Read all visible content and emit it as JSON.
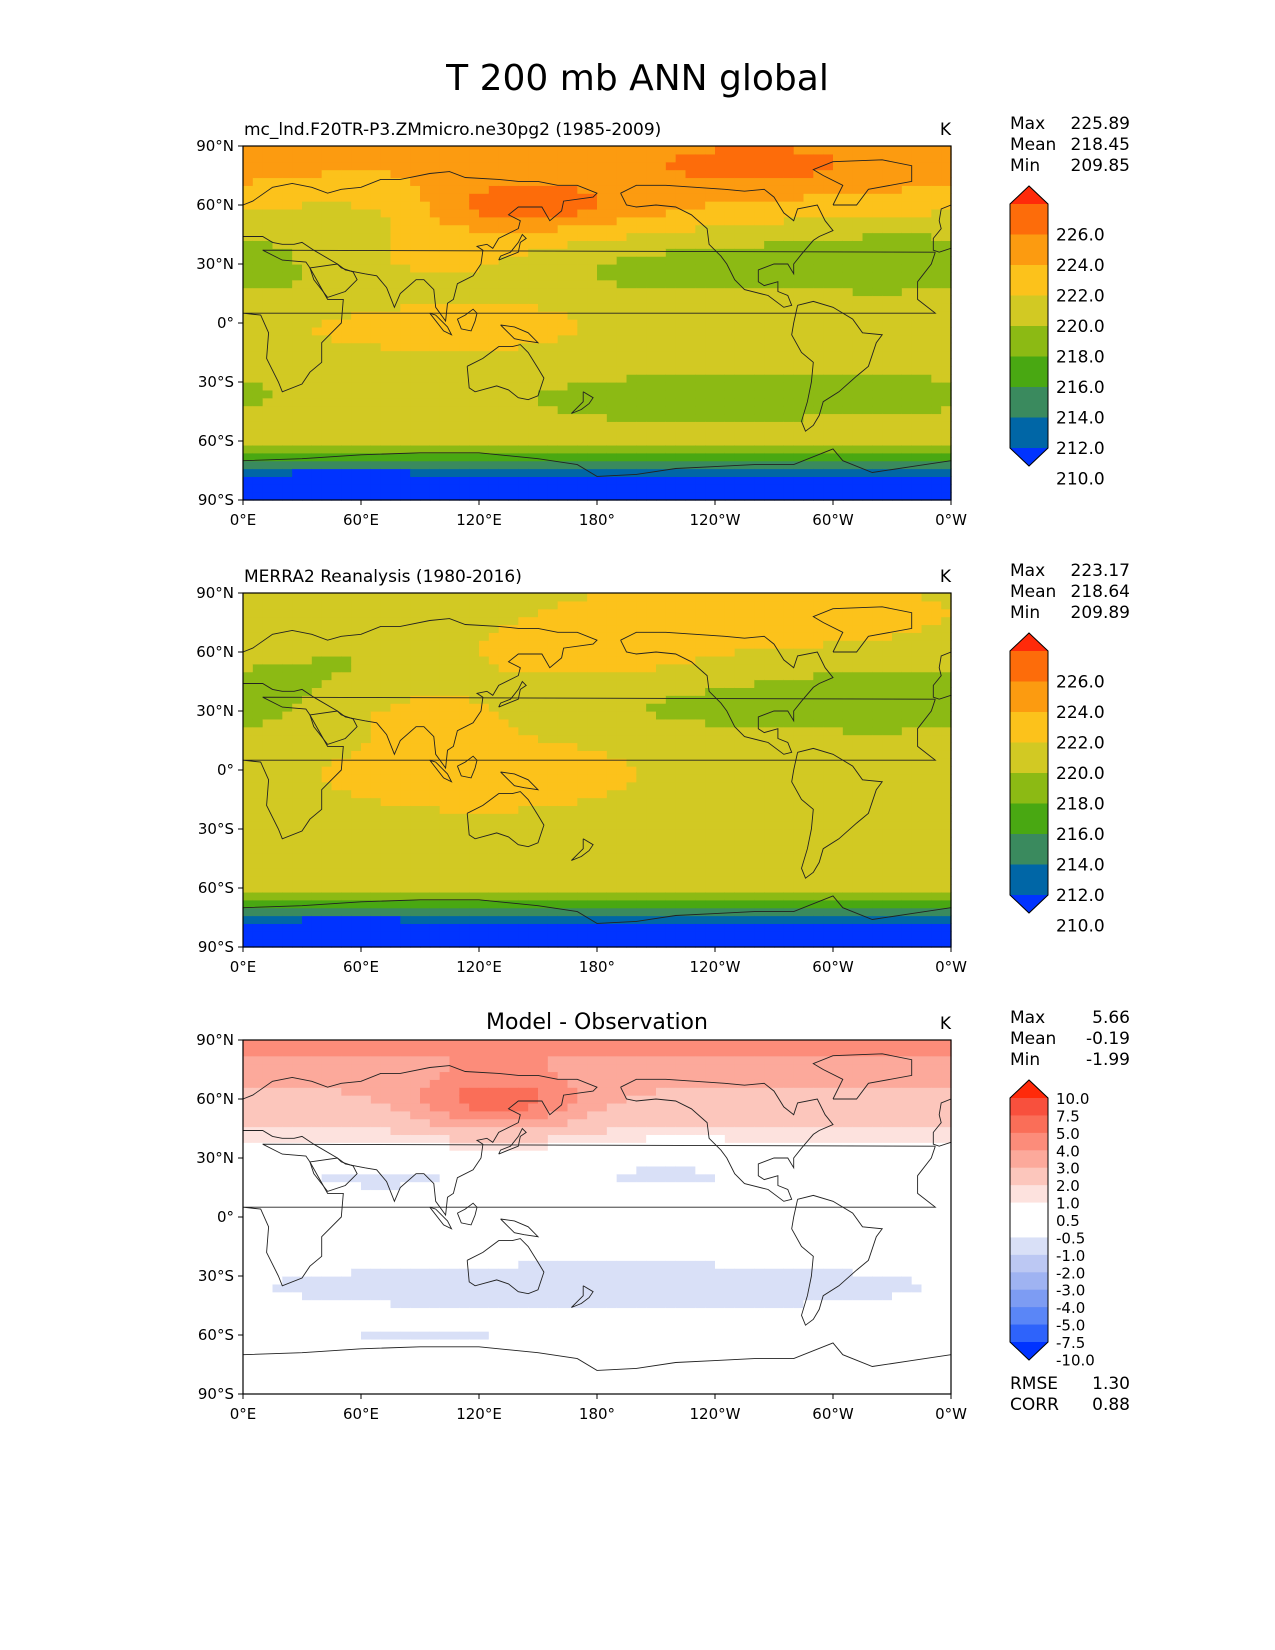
{
  "figure_title": "T 200 mb ANN global",
  "colors": {
    "abs_levels": [
      "#0033ff",
      "#0066a6",
      "#3a8a5e",
      "#49a812",
      "#8cba14",
      "#d2c923",
      "#fcc21b",
      "#fc9b10",
      "#fd6c0a",
      "#ff2a0a"
    ],
    "diff_levels": [
      "#0033ff",
      "#2e63fb",
      "#5a86f7",
      "#7d9cf3",
      "#9fb3f2",
      "#bcc8f3",
      "#d9e0f7",
      "#ffffff",
      "#ffffff",
      "#fde2de",
      "#fcc6bc",
      "#fca99b",
      "#fc8c7a",
      "#fa6e58",
      "#f8503d",
      "#ff2a0a"
    ],
    "coastline": "#222222"
  },
  "chart_data": [
    {
      "type": "contourf-map",
      "panel_title": "mc_lnd.F20TR-P3.ZMmicro.ne30pg2 (1985-2009)",
      "units": "K",
      "stats": [
        {
          "label": "Max",
          "value": "225.89"
        },
        {
          "label": "Mean",
          "value": "218.45"
        },
        {
          "label": "Min",
          "value": "209.85"
        }
      ],
      "colorbar_ticks": [
        "226.0",
        "224.0",
        "222.0",
        "220.0",
        "218.0",
        "216.0",
        "214.0",
        "212.0",
        "210.0"
      ],
      "lat_ticks": [
        "90°N",
        "60°N",
        "30°N",
        "0°",
        "30°S",
        "60°S",
        "90°S"
      ],
      "lon_ticks": [
        "0°E",
        "60°E",
        "120°E",
        "180°",
        "120°W",
        "60°W",
        "0°W"
      ],
      "xlim": [
        0,
        360
      ],
      "ylim": [
        -90,
        90
      ],
      "field": "model"
    },
    {
      "type": "contourf-map",
      "panel_title": "MERRA2 Reanalysis (1980-2016)",
      "units": "K",
      "stats": [
        {
          "label": "Max",
          "value": "223.17"
        },
        {
          "label": "Mean",
          "value": "218.64"
        },
        {
          "label": "Min",
          "value": "209.89"
        }
      ],
      "colorbar_ticks": [
        "226.0",
        "224.0",
        "222.0",
        "220.0",
        "218.0",
        "216.0",
        "214.0",
        "212.0",
        "210.0"
      ],
      "lat_ticks": [
        "90°N",
        "60°N",
        "30°N",
        "0°",
        "30°S",
        "60°S",
        "90°S"
      ],
      "lon_ticks": [
        "0°E",
        "60°E",
        "120°E",
        "180°",
        "120°W",
        "60°W",
        "0°W"
      ],
      "xlim": [
        0,
        360
      ],
      "ylim": [
        -90,
        90
      ],
      "field": "obs"
    },
    {
      "type": "contourf-map",
      "panel_title": "Model - Observation",
      "units": "K",
      "stats": [
        {
          "label": "Max",
          "value": "5.66"
        },
        {
          "label": "Mean",
          "value": "-0.19"
        },
        {
          "label": "Min",
          "value": "-1.99"
        }
      ],
      "colorbar_ticks": [
        "10.0",
        "7.5",
        "5.0",
        "4.0",
        "3.0",
        "2.0",
        "1.0",
        "0.5",
        "-0.5",
        "-1.0",
        "-2.0",
        "-3.0",
        "-4.0",
        "-5.0",
        "-7.5",
        "-10.0"
      ],
      "lat_ticks": [
        "90°N",
        "60°N",
        "30°N",
        "0°",
        "30°S",
        "60°S",
        "90°S"
      ],
      "lon_ticks": [
        "0°E",
        "60°E",
        "120°E",
        "180°",
        "120°W",
        "60°W",
        "0°W"
      ],
      "xlim": [
        0,
        360
      ],
      "ylim": [
        -90,
        90
      ],
      "field": "diff",
      "metrics": [
        {
          "label": "RMSE",
          "value": "1.30"
        },
        {
          "label": "CORR",
          "value": "0.88"
        }
      ]
    }
  ]
}
